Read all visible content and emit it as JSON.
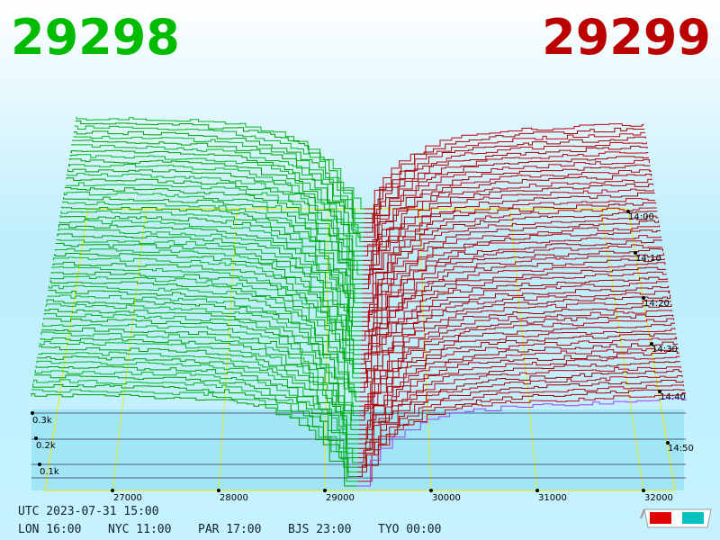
{
  "header": {
    "bid": "29298",
    "ask": "29299"
  },
  "price_labels": [
    "27000",
    "28000",
    "29000",
    "30000",
    "31000",
    "32000"
  ],
  "time_labels": [
    "14:00",
    "14:10",
    "14:20",
    "14:30",
    "14:40",
    "14:50"
  ],
  "volume_labels": [
    "0.3k",
    "0.2k",
    "0.1k"
  ],
  "footer": {
    "utc": "UTC 2023-07-31 15:00",
    "clocks": [
      "LON 16:00",
      "NYC 11:00",
      "PAR 17:00",
      "BJS 23:00",
      "TYO 00:00"
    ]
  }
}
